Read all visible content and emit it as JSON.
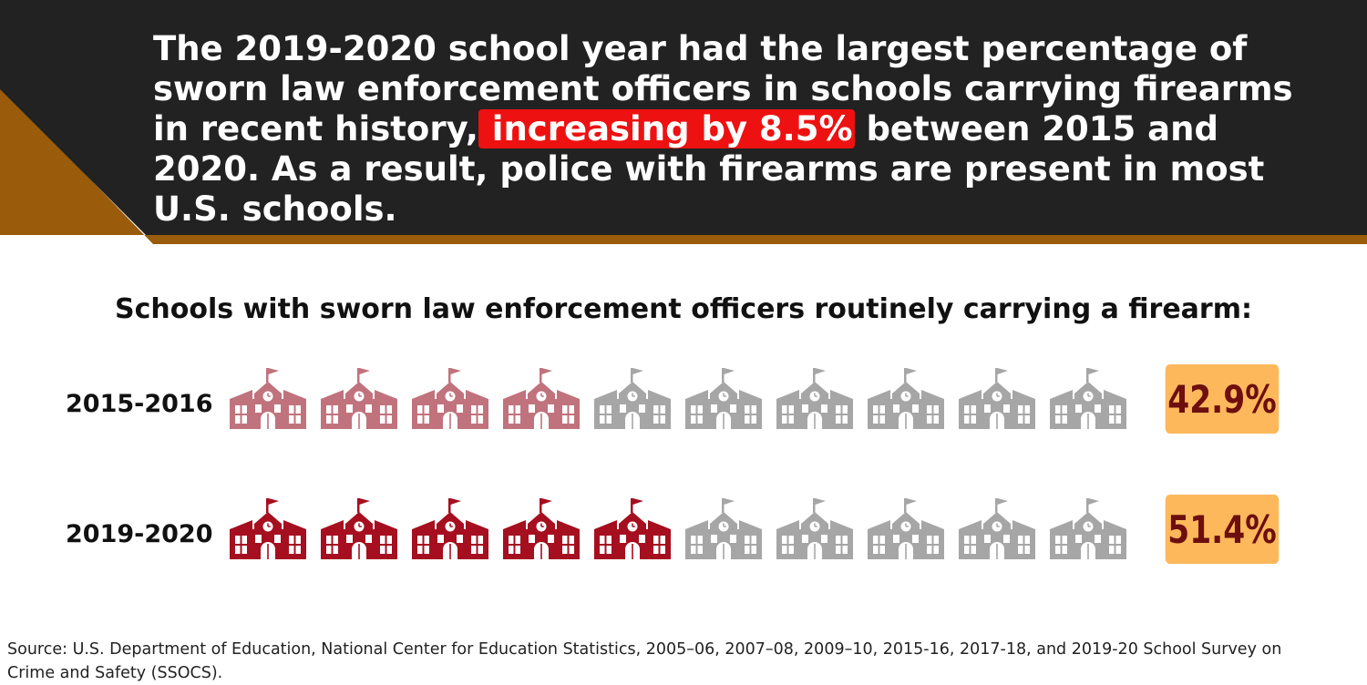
{
  "headline": {
    "before": "The 2019-2020 school year had the largest percentage of sworn law enforcement officers in schools carrying firearms in recent history,",
    "highlight": " increasing by 8.5%",
    "after": " between 2015 and 2020. As a result, police with firearms are present in most U.S. schools."
  },
  "colors": {
    "banner": "#222222",
    "banner_trim": "#9a5c0a",
    "highlight": "#ee1111",
    "inactive_icon": "#a6a6a6",
    "badge": "#fdb85c",
    "badge_text": "#6d0f0f"
  },
  "icon_name": "schoolhouse-icon",
  "chart_data": {
    "type": "pictogram",
    "title": "Schools with sworn law enforcement officers routinely carrying a firearm:",
    "icons_per_row": 10,
    "rows": [
      {
        "label": "2015-2016",
        "value": 42.9,
        "display": "42.9%",
        "filled_icons": 4,
        "color": "#c0737d"
      },
      {
        "label": "2019-2020",
        "value": 51.4,
        "display": "51.4%",
        "filled_icons": 5,
        "color": "#a50f1f"
      }
    ]
  },
  "source": "Source: U.S. Department of Education, National Center for Education Statistics, 2005–06, 2007–08, 2009–10, 2015-16, 2017-18, and 2019-20 School Survey on Crime and Safety (SSOCS)."
}
